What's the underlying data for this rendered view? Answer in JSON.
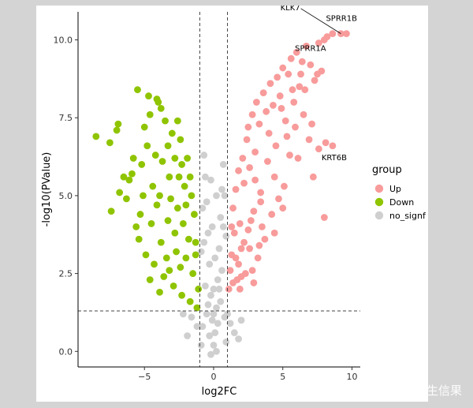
{
  "chart_data": {
    "type": "scatter",
    "title": "",
    "xlabel": "log2FC",
    "ylabel": "-log10(PValue)",
    "xlim": [
      -9.8,
      10.6
    ],
    "ylim": [
      -0.5,
      10.9
    ],
    "x_ticks": [
      -5,
      0,
      5,
      10
    ],
    "x_tick_labels": [
      "−5",
      "0",
      "5",
      "10"
    ],
    "y_ticks": [
      0,
      2.5,
      5,
      7.5,
      10
    ],
    "y_tick_labels": [
      "0.0",
      "2.5",
      "5.0",
      "7.5",
      "10.0"
    ],
    "grid": false,
    "thresholds": {
      "log2fc": [
        -1,
        1
      ],
      "neg_log10_p": 1.3
    },
    "legend": {
      "title": "group",
      "position": "right",
      "entries": [
        {
          "label": "Up",
          "color": "#f89b9b"
        },
        {
          "label": "Down",
          "color": "#8fc400"
        },
        {
          "label": "no_signf",
          "color": "#cfcfcf"
        }
      ]
    },
    "annotations": [
      {
        "label": "KLK7",
        "x": 7.1,
        "y": 10.6
      },
      {
        "label": "SPRR1B",
        "x": 9.6,
        "y": 10.3
      },
      {
        "label": "SPRR1A",
        "x": 8.5,
        "y": 9.7
      },
      {
        "label": "KRT6B",
        "x": 8.2,
        "y": 6.7
      }
    ],
    "series": [
      {
        "name": "Up",
        "color": "#f89b9b",
        "points": [
          [
            1.1,
            2.0
          ],
          [
            1.3,
            3.1
          ],
          [
            1.5,
            3.8
          ],
          [
            1.4,
            4.6
          ],
          [
            1.6,
            5.2
          ],
          [
            1.8,
            5.8
          ],
          [
            1.9,
            4.1
          ],
          [
            2.1,
            6.2
          ],
          [
            2.2,
            5.4
          ],
          [
            2.0,
            3.3
          ],
          [
            2.4,
            6.8
          ],
          [
            2.5,
            7.2
          ],
          [
            2.6,
            5.9
          ],
          [
            2.8,
            7.6
          ],
          [
            3.0,
            6.4
          ],
          [
            3.1,
            8.0
          ],
          [
            3.3,
            7.3
          ],
          [
            3.4,
            5.1
          ],
          [
            3.6,
            8.3
          ],
          [
            3.8,
            7.7
          ],
          [
            3.9,
            6.1
          ],
          [
            4.1,
            8.6
          ],
          [
            4.3,
            7.9
          ],
          [
            4.4,
            5.6
          ],
          [
            4.6,
            8.8
          ],
          [
            4.8,
            8.2
          ],
          [
            5.0,
            9.1
          ],
          [
            5.2,
            7.4
          ],
          [
            5.4,
            8.9
          ],
          [
            5.6,
            9.4
          ],
          [
            5.8,
            8.0
          ],
          [
            6.0,
            9.6
          ],
          [
            6.2,
            8.5
          ],
          [
            6.4,
            9.3
          ],
          [
            6.7,
            9.8
          ],
          [
            7.0,
            9.2
          ],
          [
            7.3,
            8.7
          ],
          [
            7.6,
            9.9
          ],
          [
            7.8,
            9.0
          ],
          [
            8.2,
            10.1
          ],
          [
            8.6,
            10.2
          ],
          [
            9.2,
            10.2
          ],
          [
            9.6,
            10.2
          ],
          [
            8.0,
            10.0
          ],
          [
            7.5,
            8.9
          ],
          [
            6.9,
            6.8
          ],
          [
            7.6,
            6.5
          ],
          [
            8.1,
            6.7
          ],
          [
            8.6,
            6.6
          ],
          [
            7.2,
            5.6
          ],
          [
            6.1,
            6.2
          ],
          [
            5.5,
            6.3
          ],
          [
            5.1,
            5.3
          ],
          [
            4.7,
            4.9
          ],
          [
            4.2,
            4.4
          ],
          [
            3.7,
            3.6
          ],
          [
            3.2,
            3.0
          ],
          [
            2.8,
            2.6
          ],
          [
            2.5,
            3.9
          ],
          [
            2.3,
            2.5
          ],
          [
            1.7,
            2.3
          ],
          [
            1.2,
            2.6
          ],
          [
            1.9,
            2.0
          ],
          [
            2.9,
            4.5
          ],
          [
            3.5,
            4.0
          ],
          [
            4.5,
            6.6
          ],
          [
            5.3,
            6.9
          ],
          [
            5.9,
            7.2
          ],
          [
            6.5,
            7.6
          ],
          [
            4.0,
            7.0
          ],
          [
            3.0,
            5.5
          ],
          [
            2.7,
            4.2
          ],
          [
            2.2,
            3.5
          ],
          [
            1.6,
            3.0
          ],
          [
            1.3,
            4.0
          ],
          [
            1.8,
            2.8
          ],
          [
            2.6,
            3.3
          ],
          [
            3.4,
            4.8
          ],
          [
            4.9,
            7.8
          ],
          [
            5.7,
            8.4
          ],
          [
            6.3,
            8.9
          ],
          [
            6.6,
            8.4
          ],
          [
            7.1,
            7.3
          ],
          [
            5.0,
            4.6
          ],
          [
            4.4,
            3.8
          ],
          [
            8.0,
            4.3
          ],
          [
            3.3,
            3.4
          ],
          [
            2.9,
            2.2
          ],
          [
            2.0,
            2.4
          ],
          [
            1.4,
            2.2
          ]
        ]
      },
      {
        "name": "Down",
        "color": "#8fc400",
        "points": [
          [
            -1.1,
            2.0
          ],
          [
            -1.3,
            3.1
          ],
          [
            -1.4,
            4.4
          ],
          [
            -1.6,
            5.0
          ],
          [
            -1.8,
            3.6
          ],
          [
            -1.9,
            6.2
          ],
          [
            -2.1,
            5.3
          ],
          [
            -2.2,
            4.1
          ],
          [
            -2.4,
            6.8
          ],
          [
            -2.5,
            5.6
          ],
          [
            -2.7,
            3.2
          ],
          [
            -2.8,
            6.2
          ],
          [
            -3.0,
            7.0
          ],
          [
            -3.2,
            5.6
          ],
          [
            -3.3,
            4.2
          ],
          [
            -3.5,
            7.4
          ],
          [
            -3.7,
            6.1
          ],
          [
            -3.9,
            5.0
          ],
          [
            -4.0,
            8.0
          ],
          [
            -4.2,
            6.3
          ],
          [
            -4.4,
            5.3
          ],
          [
            -4.6,
            7.6
          ],
          [
            -4.8,
            6.6
          ],
          [
            -5.0,
            7.2
          ],
          [
            -5.2,
            6.0
          ],
          [
            -5.5,
            8.4
          ],
          [
            -5.8,
            6.2
          ],
          [
            -6.1,
            5.5
          ],
          [
            -6.5,
            5.6
          ],
          [
            -6.9,
            7.3
          ],
          [
            -7.0,
            7.1
          ],
          [
            -7.5,
            6.7
          ],
          [
            -8.5,
            6.9
          ],
          [
            -7.4,
            4.5
          ],
          [
            -6.3,
            4.9
          ],
          [
            -5.6,
            4.0
          ],
          [
            -4.9,
            3.1
          ],
          [
            -4.3,
            2.8
          ],
          [
            -3.6,
            2.4
          ],
          [
            -2.9,
            2.1
          ],
          [
            -2.3,
            1.8
          ],
          [
            -1.7,
            1.6
          ],
          [
            -1.2,
            1.4
          ],
          [
            -3.8,
            3.5
          ],
          [
            -4.5,
            4.1
          ],
          [
            -5.4,
            3.6
          ],
          [
            -3.1,
            4.9
          ],
          [
            -2.6,
            4.6
          ],
          [
            -2.0,
            3.0
          ],
          [
            -1.5,
            2.5
          ],
          [
            -2.4,
            2.7
          ],
          [
            -3.4,
            3.0
          ],
          [
            -4.1,
            4.7
          ],
          [
            -5.1,
            5.0
          ],
          [
            -5.9,
            5.7
          ],
          [
            -4.7,
            8.2
          ],
          [
            -4.1,
            8.1
          ],
          [
            -3.8,
            7.8
          ],
          [
            -3.3,
            6.6
          ],
          [
            -2.6,
            7.4
          ],
          [
            -2.0,
            4.7
          ],
          [
            -1.7,
            5.6
          ],
          [
            -1.3,
            3.5
          ],
          [
            -6.8,
            5.1
          ],
          [
            -5.3,
            4.4
          ],
          [
            -4.6,
            2.3
          ],
          [
            -3.9,
            1.9
          ],
          [
            -3.2,
            2.6
          ],
          [
            -2.8,
            3.8
          ],
          [
            -2.3,
            6.0
          ]
        ]
      },
      {
        "name": "no_signf",
        "color": "#cfcfcf",
        "points": [
          [
            0.0,
            0.2
          ],
          [
            0.1,
            0.6
          ],
          [
            -0.1,
            1.0
          ],
          [
            0.2,
            1.4
          ],
          [
            -0.2,
            1.8
          ],
          [
            0.3,
            2.3
          ],
          [
            -0.3,
            2.8
          ],
          [
            0.4,
            3.3
          ],
          [
            -0.4,
            3.8
          ],
          [
            0.5,
            4.3
          ],
          [
            -0.5,
            4.8
          ],
          [
            0.6,
            5.2
          ],
          [
            -0.6,
            5.6
          ],
          [
            0.7,
            6.0
          ],
          [
            -0.7,
            6.3
          ],
          [
            0.8,
            5.0
          ],
          [
            -0.8,
            4.6
          ],
          [
            0.9,
            3.7
          ],
          [
            -0.9,
            3.2
          ],
          [
            0.6,
            2.6
          ],
          [
            -0.6,
            2.1
          ],
          [
            0.3,
            0.9
          ],
          [
            -0.3,
            0.5
          ],
          [
            0.5,
            1.6
          ],
          [
            -0.5,
            1.2
          ],
          [
            0.8,
            1.1
          ],
          [
            -0.8,
            0.8
          ],
          [
            1.2,
            0.9
          ],
          [
            -1.2,
            0.8
          ],
          [
            1.5,
            0.6
          ],
          [
            -1.6,
            1.1
          ],
          [
            2.0,
            1.0
          ],
          [
            -2.2,
            1.2
          ],
          [
            1.8,
            0.4
          ],
          [
            -1.9,
            0.5
          ],
          [
            0.9,
            0.3
          ],
          [
            -0.9,
            0.2
          ],
          [
            0.2,
            0.0
          ],
          [
            -0.2,
            -0.1
          ],
          [
            0.0,
            1.2
          ],
          [
            0.0,
            2.0
          ],
          [
            0.1,
            3.0
          ],
          [
            -0.1,
            4.0
          ],
          [
            0.2,
            5.0
          ],
          [
            -0.2,
            5.5
          ],
          [
            0.7,
            4.0
          ],
          [
            -0.7,
            3.5
          ],
          [
            0.4,
            2.0
          ],
          [
            -0.4,
            1.5
          ],
          [
            1.0,
            1.2
          ]
        ]
      }
    ]
  },
  "watermark": "知乎 @生信果"
}
